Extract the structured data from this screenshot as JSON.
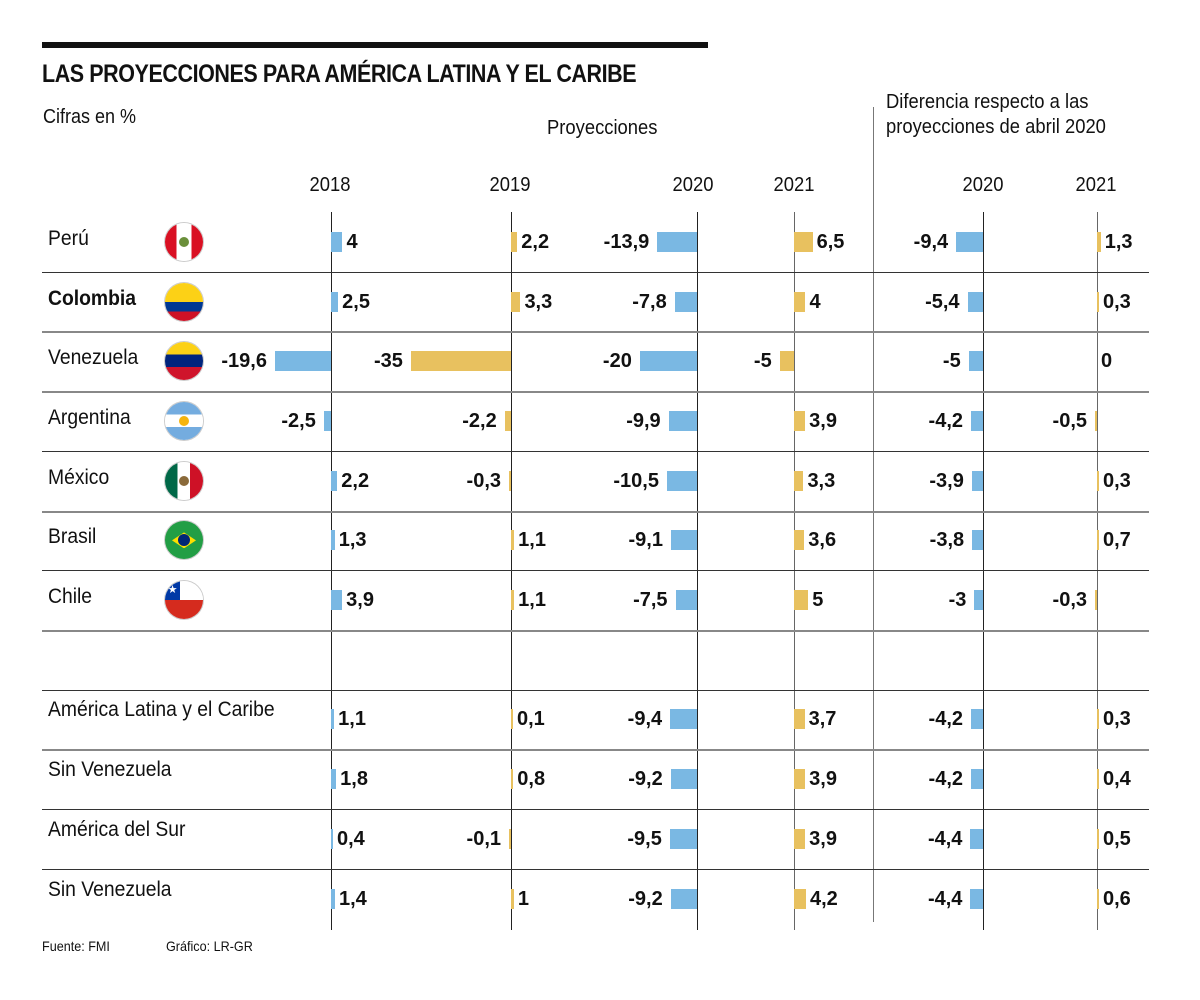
{
  "header": {
    "title": "LAS PROYECCIONES PARA AMÉRICA LATINA Y EL CARIBE",
    "subtitle": "Cifras en %",
    "projections_label": "Proyecciones",
    "difference_label_line1": "Diferencia respecto a las",
    "difference_label_line2": "proyecciones de abril 2020"
  },
  "colors": {
    "actual_bar": "#7ab8e3",
    "projection_bar": "#e8c15f",
    "text": "#111111",
    "grid": "#333333"
  },
  "footer": {
    "source": "Fuente: FMI",
    "graphic": "Gráfico: LR-GR"
  },
  "chart_data": {
    "type": "bar",
    "title": "LAS PROYECCIONES PARA AMÉRICA LATINA Y EL CARIBE",
    "subtitle": "Cifras en %",
    "columns": [
      {
        "key": "y2018",
        "label": "2018",
        "group": "",
        "color": "actual_bar"
      },
      {
        "key": "y2019",
        "label": "2019",
        "group": "",
        "color": "projection_bar"
      },
      {
        "key": "y2020",
        "label": "2020",
        "group": "Proyecciones",
        "color": "actual_bar"
      },
      {
        "key": "y2021",
        "label": "2021",
        "group": "Proyecciones",
        "color": "projection_bar"
      },
      {
        "key": "d2020",
        "label": "2020",
        "group": "Diferencia respecto a las proyecciones de abril 2020",
        "color": "actual_bar"
      },
      {
        "key": "d2021",
        "label": "2021",
        "group": "Diferencia respecto a las proyecciones de abril 2020",
        "color": "projection_bar"
      }
    ],
    "rows": [
      {
        "name": "Perú",
        "flag": "peru-flag",
        "bold": false,
        "values": [
          4,
          2.2,
          -13.9,
          6.5,
          -9.4,
          1.3
        ],
        "labels": [
          "4",
          "2,2",
          "-13,9",
          "6,5",
          "-9,4",
          "1,3"
        ]
      },
      {
        "name": "Colombia",
        "flag": "colombia-flag",
        "bold": true,
        "values": [
          2.5,
          3.3,
          -7.8,
          4,
          -5.4,
          0.3
        ],
        "labels": [
          "2,5",
          "3,3",
          "-7,8",
          "4",
          "-5,4",
          "0,3"
        ]
      },
      {
        "name": "Venezuela",
        "flag": "venezuela-flag",
        "bold": false,
        "values": [
          -19.6,
          -35,
          -20,
          -5,
          -5,
          0
        ],
        "labels": [
          "-19,6",
          "-35",
          "-20",
          "-5",
          "-5",
          "0"
        ]
      },
      {
        "name": "Argentina",
        "flag": "argentina-flag",
        "bold": false,
        "values": [
          -2.5,
          -2.2,
          -9.9,
          3.9,
          -4.2,
          -0.5
        ],
        "labels": [
          "-2,5",
          "-2,2",
          "-9,9",
          "3,9",
          "-4,2",
          "-0,5"
        ]
      },
      {
        "name": "México",
        "flag": "mexico-flag",
        "bold": false,
        "values": [
          2.2,
          -0.3,
          -10.5,
          3.3,
          -3.9,
          0.3
        ],
        "labels": [
          "2,2",
          "-0,3",
          "-10,5",
          "3,3",
          "-3,9",
          "0,3"
        ]
      },
      {
        "name": "Brasil",
        "flag": "brazil-flag",
        "bold": false,
        "values": [
          1.3,
          1.1,
          -9.1,
          3.6,
          -3.8,
          0.7
        ],
        "labels": [
          "1,3",
          "1,1",
          "-9,1",
          "3,6",
          "-3,8",
          "0,7"
        ]
      },
      {
        "name": "Chile",
        "flag": "chile-flag",
        "bold": false,
        "values": [
          3.9,
          1.1,
          -7.5,
          5,
          -3,
          -0.3
        ],
        "labels": [
          "3,9",
          "1,1",
          "-7,5",
          "5",
          "-3",
          "-0,3"
        ]
      },
      {
        "name": "",
        "flag": "",
        "bold": false,
        "values": [],
        "labels": []
      },
      {
        "name": "América Latina y el Caribe",
        "flag": "",
        "bold": false,
        "values": [
          1.1,
          0.1,
          -9.4,
          3.7,
          -4.2,
          0.3
        ],
        "labels": [
          "1,1",
          "0,1",
          "-9,4",
          "3,7",
          "-4,2",
          "0,3"
        ]
      },
      {
        "name": "Sin Venezuela",
        "flag": "",
        "bold": false,
        "values": [
          1.8,
          0.8,
          -9.2,
          3.9,
          -4.2,
          0.4
        ],
        "labels": [
          "1,8",
          "0,8",
          "-9,2",
          "3,9",
          "-4,2",
          "0,4"
        ]
      },
      {
        "name": "América del Sur",
        "flag": "",
        "bold": false,
        "values": [
          0.4,
          -0.1,
          -9.5,
          3.9,
          -4.4,
          0.5
        ],
        "labels": [
          "0,4",
          "-0,1",
          "-9,5",
          "3,9",
          "-4,4",
          "0,5"
        ]
      },
      {
        "name": "Sin Venezuela",
        "flag": "",
        "bold": false,
        "values": [
          1.4,
          1,
          -9.2,
          4.2,
          -4.4,
          0.6
        ],
        "labels": [
          "1,4",
          "1",
          "-9,2",
          "4,2",
          "-4,4",
          "0,6"
        ]
      }
    ]
  }
}
